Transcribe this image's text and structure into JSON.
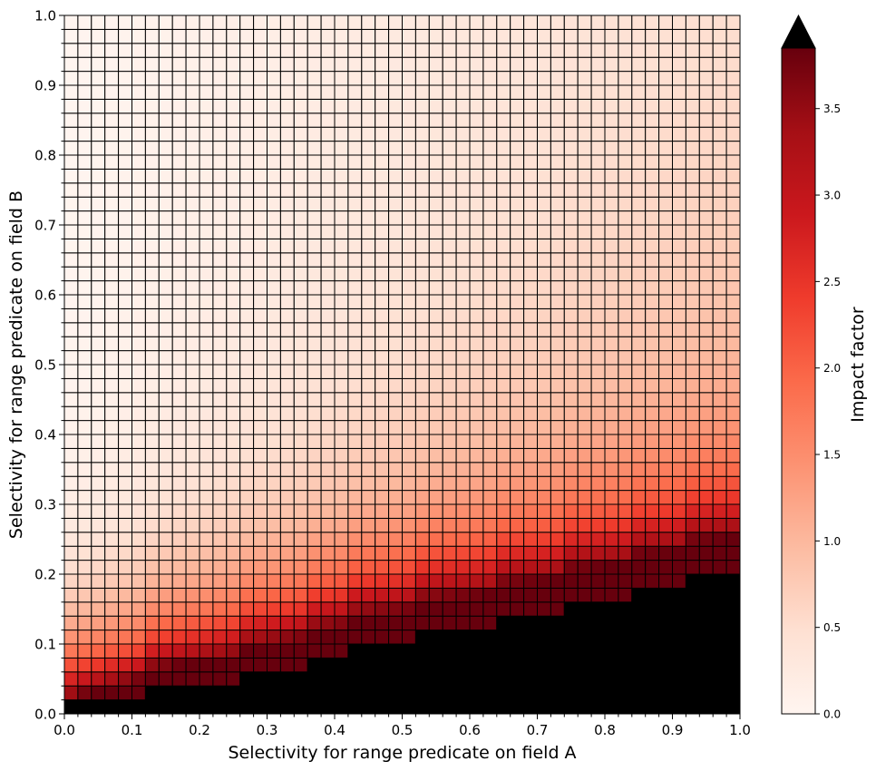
{
  "chart_data": {
    "type": "heatmap",
    "title": "",
    "xlabel": "Selectivity for range predicate on field A",
    "ylabel": "Selectivity for range predicate on field B",
    "xlim": [
      0.0,
      1.0
    ],
    "ylim": [
      0.0,
      1.0
    ],
    "x_ticks": [
      "0.0",
      "0.1",
      "0.2",
      "0.3",
      "0.4",
      "0.5",
      "0.6",
      "0.7",
      "0.8",
      "0.9",
      "1.0"
    ],
    "y_ticks": [
      "0.0",
      "0.1",
      "0.2",
      "0.3",
      "0.4",
      "0.5",
      "0.6",
      "0.7",
      "0.8",
      "0.9",
      "1.0"
    ],
    "grid_resolution": 0.02,
    "cell_edge_color": "#000000",
    "overflow_color": "#000000",
    "colormap": "Reds",
    "colorbar": {
      "label": "Impact factor",
      "range": [
        0.0,
        3.85
      ],
      "extend": "max",
      "ticks": [
        "0.0",
        "0.5",
        "1.0",
        "1.5",
        "2.0",
        "2.5",
        "3.0",
        "3.5"
      ]
    },
    "overflow_boundary": {
      "description_values": "For each x-column, cells with y below this value are above the colorbar maximum (black)",
      "x_upper": [
        0.02,
        0.04,
        0.06,
        0.08,
        0.1,
        0.12,
        0.14,
        0.16,
        0.18,
        0.2,
        0.22,
        0.24,
        0.26,
        0.28,
        0.3,
        0.32,
        0.34,
        0.36,
        0.38,
        0.4,
        0.42,
        0.44,
        0.46,
        0.48,
        0.5,
        0.52,
        0.54,
        0.56,
        0.58,
        0.6,
        0.62,
        0.64,
        0.66,
        0.68,
        0.7,
        0.72,
        0.74,
        0.76,
        0.78,
        0.8,
        0.82,
        0.84,
        0.86,
        0.88,
        0.9,
        0.92,
        0.94,
        0.96,
        0.98,
        1.0
      ],
      "y_limit": [
        0.02,
        0.02,
        0.02,
        0.02,
        0.02,
        0.02,
        0.04,
        0.04,
        0.04,
        0.04,
        0.04,
        0.04,
        0.04,
        0.06,
        0.06,
        0.06,
        0.06,
        0.06,
        0.08,
        0.08,
        0.08,
        0.1,
        0.1,
        0.1,
        0.1,
        0.1,
        0.12,
        0.12,
        0.12,
        0.12,
        0.12,
        0.12,
        0.14,
        0.14,
        0.14,
        0.14,
        0.14,
        0.16,
        0.16,
        0.16,
        0.16,
        0.16,
        0.18,
        0.18,
        0.18,
        0.18,
        0.2,
        0.2,
        0.2,
        0.2
      ]
    }
  }
}
